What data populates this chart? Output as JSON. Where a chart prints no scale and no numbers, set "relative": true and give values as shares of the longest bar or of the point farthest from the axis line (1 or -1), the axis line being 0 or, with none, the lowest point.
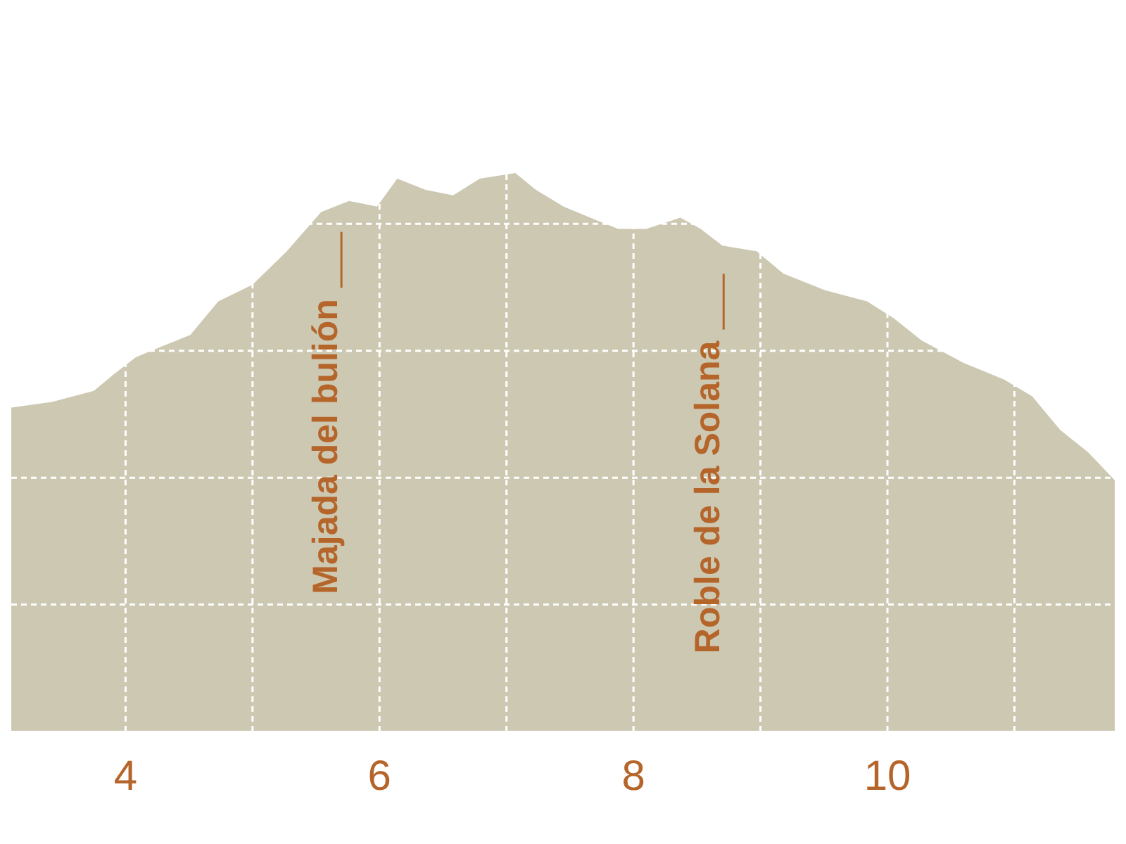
{
  "chart_data": {
    "type": "area",
    "relative": true,
    "color": "#cdc8b2",
    "x": [
      3.1,
      3.42,
      3.75,
      3.91,
      4.08,
      4.29,
      4.51,
      4.73,
      5.0,
      5.27,
      5.54,
      5.76,
      5.98,
      6.14,
      6.36,
      6.58,
      6.79,
      7.07,
      7.23,
      7.45,
      7.66,
      7.88,
      8.1,
      8.37,
      8.53,
      8.7,
      8.97,
      9.18,
      9.51,
      9.84,
      10.05,
      10.27,
      10.6,
      10.92,
      11.14,
      11.36,
      11.58,
      11.79
    ],
    "values": [
      0.58,
      0.59,
      0.61,
      0.64,
      0.67,
      0.69,
      0.71,
      0.77,
      0.8,
      0.86,
      0.93,
      0.95,
      0.94,
      0.99,
      0.97,
      0.96,
      0.99,
      1,
      0.97,
      0.94,
      0.92,
      0.9,
      0.9,
      0.92,
      0.9,
      0.87,
      0.86,
      0.82,
      0.79,
      0.77,
      0.74,
      0.7,
      0.66,
      0.63,
      0.6,
      0.54,
      0.5,
      0.45
    ],
    "xlim": [
      3.1,
      11.79
    ],
    "xticks": [
      4,
      {
        "value": 5,
        "label": null
      },
      6,
      {
        "value": 7,
        "label": null
      },
      8,
      {
        "value": 9,
        "label": null
      },
      10,
      {
        "value": 11,
        "label": null
      }
    ],
    "grid": true,
    "ref_lines": [
      {
        "axis": "x",
        "value": 5.7,
        "label": "Majada del bulión",
        "color": "#b5652a"
      },
      {
        "axis": "x",
        "value": 8.71,
        "label": "Roble de la Solana",
        "color": "#b5652a"
      }
    ]
  }
}
